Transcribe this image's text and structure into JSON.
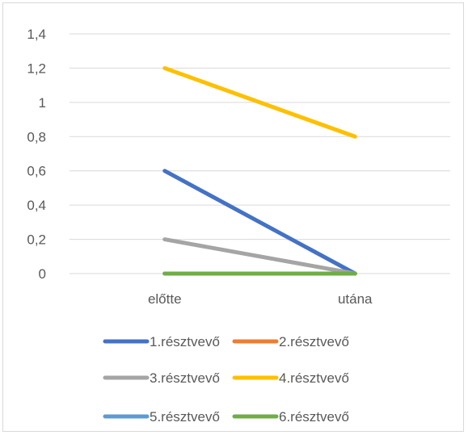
{
  "chart_data": {
    "type": "line",
    "categories": [
      "előtte",
      "utána"
    ],
    "ylim": [
      0,
      1.4
    ],
    "y_ticks": [
      "0",
      "0,2",
      "0,4",
      "0,6",
      "0,8",
      "1",
      "1,2",
      "1,4"
    ],
    "grid": true,
    "legend_position": "bottom",
    "series": [
      {
        "name": "1.résztvevő",
        "color": "#4472c4",
        "values": [
          0.6,
          0.0
        ]
      },
      {
        "name": "2.résztvevő",
        "color": "#ed7d31",
        "values": [
          0.0,
          0.0
        ]
      },
      {
        "name": "3.résztvevő",
        "color": "#a5a5a5",
        "values": [
          0.2,
          0.0
        ]
      },
      {
        "name": "4.résztvevő",
        "color": "#ffc000",
        "values": [
          1.2,
          0.8
        ]
      },
      {
        "name": "5.résztvevő",
        "color": "#5b9bd5",
        "values": [
          0.0,
          0.0
        ]
      },
      {
        "name": "6.résztvevő",
        "color": "#70ad47",
        "values": [
          0.0,
          0.0
        ]
      }
    ]
  }
}
